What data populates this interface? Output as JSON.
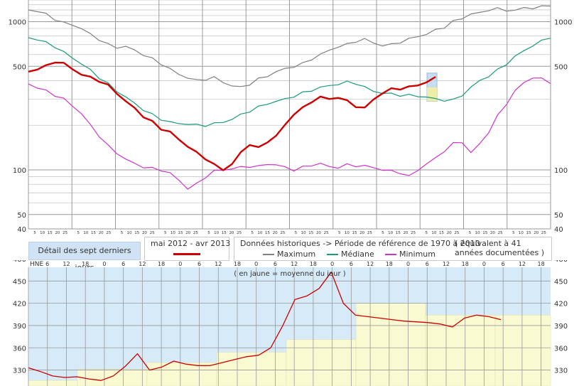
{
  "chart_data": [
    {
      "type": "line",
      "y_scale": "log",
      "ylim": [
        40,
        1400
      ],
      "y_ticks": [
        40,
        50,
        100,
        500,
        1000
      ],
      "x_day_labels": [
        "5",
        "10",
        "15",
        "20",
        "25"
      ],
      "x_months": 12,
      "grid": true,
      "series": [
        {
          "key": "maximum",
          "color": "#808080",
          "values": [
            1200,
            1180,
            1120,
            1040,
            980,
            950,
            900,
            820,
            760,
            700,
            670,
            680,
            640,
            600,
            560,
            520,
            480,
            440,
            420,
            400,
            410,
            420,
            390,
            370,
            360,
            380,
            410,
            430,
            460,
            480,
            500,
            520,
            560,
            600,
            640,
            680,
            700,
            740,
            760,
            720,
            690,
            700,
            730,
            760,
            800,
            820,
            880,
            920,
            1000,
            1060,
            1120,
            1150,
            1200,
            1220,
            1200,
            1180,
            1250,
            1230,
            1260,
            1300
          ]
        },
        {
          "key": "mediane",
          "color": "#1a9a7c",
          "values": [
            780,
            760,
            720,
            680,
            620,
            570,
            520,
            470,
            420,
            380,
            340,
            310,
            280,
            255,
            235,
            220,
            210,
            205,
            205,
            200,
            200,
            205,
            210,
            220,
            235,
            250,
            265,
            280,
            290,
            300,
            315,
            330,
            345,
            360,
            370,
            380,
            390,
            385,
            360,
            340,
            330,
            325,
            320,
            318,
            315,
            310,
            300,
            296,
            295,
            320,
            360,
            400,
            430,
            470,
            520,
            580,
            640,
            690,
            740,
            790
          ]
        },
        {
          "key": "minimum",
          "color": "#cc33cc",
          "values": [
            380,
            360,
            340,
            320,
            300,
            270,
            240,
            200,
            170,
            145,
            130,
            118,
            110,
            105,
            102,
            100,
            95,
            85,
            75,
            80,
            90,
            98,
            100,
            102,
            104,
            106,
            105,
            110,
            108,
            104,
            100,
            104,
            108,
            110,
            105,
            104,
            108,
            107,
            106,
            104,
            100,
            98,
            96,
            90,
            100,
            110,
            120,
            135,
            150,
            155,
            130,
            150,
            180,
            230,
            280,
            340,
            390,
            420,
            410,
            390
          ]
        },
        {
          "key": "current",
          "color": "#cc0000",
          "values": [
            460,
            480,
            500,
            540,
            520,
            480,
            440,
            420,
            400,
            370,
            330,
            290,
            260,
            230,
            210,
            190,
            180,
            160,
            145,
            130,
            120,
            108,
            100,
            110,
            130,
            150,
            140,
            155,
            170,
            200,
            240,
            260,
            290,
            310,
            300,
            310,
            290,
            270,
            260,
            300,
            330,
            350,
            355,
            360,
            375,
            390,
            420
          ]
        }
      ]
    },
    {
      "type": "line",
      "ylim": [
        310,
        480
      ],
      "y_ticks": [
        330,
        360,
        390,
        420,
        450,
        480
      ],
      "x_tick_labels": [
        "6",
        "12",
        "18",
        "0",
        "6",
        "12",
        "18",
        "0",
        "6",
        "12",
        "18",
        "0",
        "6",
        "12",
        "18",
        "0",
        "6",
        "12",
        "18",
        "0",
        "6",
        "12",
        "18",
        "0",
        "6",
        "12",
        "18"
      ],
      "hourly_level": [
        333,
        328,
        322,
        320,
        321,
        318,
        316,
        322,
        335,
        352,
        330,
        334,
        342,
        338,
        336,
        336,
        340,
        344,
        348,
        350,
        360,
        390,
        425,
        430,
        440,
        462,
        420,
        404,
        402,
        400,
        398,
        396,
        395,
        394,
        392,
        388,
        400,
        404,
        402,
        398
      ],
      "daily_mean_steps": [
        316,
        331,
        340,
        354,
        371,
        420,
        404,
        404
      ],
      "annotation": "( en jaune = moyenne du jour )"
    }
  ],
  "legend": {
    "detail_label": "Détail des sept derniers jours",
    "period_title": "mai 2012 - avr 2013",
    "hist_title": "Données historiques -> Période de référence  de 1970 à 2010",
    "hist_note": "( équivalent à 41 années documentées )",
    "max_label": "Maximum",
    "median_label": "Médiane",
    "min_label": "Minimum"
  },
  "detail_unit": "HNE",
  "colors": {
    "current": "#cc0000",
    "max": "#808080",
    "median": "#1a9a7c",
    "min": "#cc33cc",
    "panel_bg": "#d6eaf8",
    "mean_fill": "#fafad2",
    "grid": "#aaaaaa"
  }
}
